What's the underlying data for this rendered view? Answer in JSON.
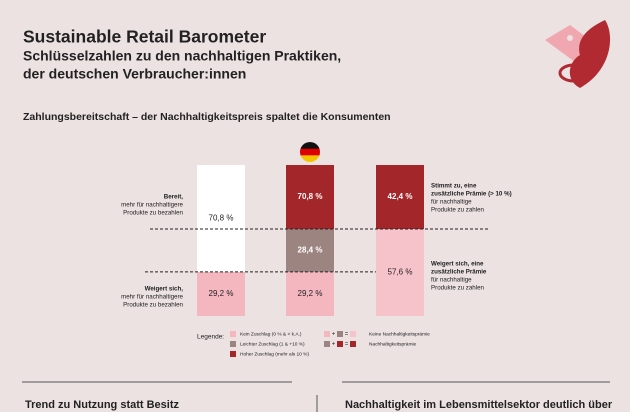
{
  "header": {
    "title": "Sustainable Retail Barometer",
    "subtitle_lines": [
      "Schlüsselzahlen zu den nachhaltigen Praktiken,",
      "der deutschen Verbraucher:innen"
    ]
  },
  "chart_data": {
    "type": "stacked-bar",
    "title": "Zahlungsbereitschaft – der Nachhaltigkeitspreis spaltet die Konsumenten",
    "ylim": [
      0,
      100
    ],
    "columns": [
      {
        "segments": [
          {
            "value": 29.2,
            "label": "29,2 %",
            "color": "#f4b6bf"
          },
          {
            "value": 70.8,
            "label": "70,8 %",
            "color": "#ffffff"
          }
        ]
      },
      {
        "segments": [
          {
            "value": 29.2,
            "label": "29,2 %",
            "color": "#f4b6bf"
          },
          {
            "value": 28.4,
            "label": "28,4 %",
            "color": "#9c8480"
          },
          {
            "value": 42.4,
            "color": "#a3262b"
          }
        ],
        "note_label": "70,8 %",
        "flag": true
      },
      {
        "segments": [
          {
            "value": 57.6,
            "label": "57,6 %",
            "color": "#f7c3ca"
          },
          {
            "value": 42.4,
            "label": "42,4 %",
            "color": "#a3262b"
          }
        ]
      }
    ],
    "left_notes": [
      {
        "bold": [
          "Bereit,"
        ],
        "lines": [
          "mehr für nachhaltigere",
          "Produkte zu bezahlen"
        ]
      },
      {
        "bold": [
          "Weigert sich,"
        ],
        "lines": [
          "mehr für nachhaltigere",
          "Produkte zu bezahlen"
        ]
      }
    ],
    "right_notes": [
      {
        "bold": [
          "Stimmt zu, eine",
          "zusätzliche Prämie (> 10 %)"
        ],
        "lines": [
          "für nachhaltige",
          "Produkte zu zahlen"
        ]
      },
      {
        "bold": [
          "Weigert sich, eine",
          "zusätzliche Prämie"
        ],
        "lines": [
          "für nachhaltige",
          "Produkte zu zahlen"
        ]
      }
    ],
    "legend": {
      "title": "Legende:",
      "items": [
        {
          "label": "Kein Zuschlag (0 % & < k.A.)",
          "color": "#f4b6bf"
        },
        {
          "label": "Leichter Zuschlag (1 & +10 %)",
          "color": "#9c8480"
        },
        {
          "label": "Hoher Zuschlag (mehr als 10 %)",
          "color": "#a3262b"
        }
      ]
    },
    "legend2": {
      "items": [
        {
          "label": "Keine Nachhaltigkeitsprämie",
          "operators": [
            "+",
            "="
          ],
          "colors": [
            "#f4b6bf",
            "#9c8480",
            "#f7c3ca"
          ]
        },
        {
          "label": "Nachhaltigkeitsprämie",
          "operators": [
            "+",
            "="
          ],
          "colors": [
            "#9c8480",
            "#a3262b",
            "#a3262b"
          ]
        }
      ]
    }
  },
  "footer": {
    "left": "Trend zu Nutzung statt Besitz",
    "right": "Nachhaltigkeit im Lebensmittelsektor deutlich über"
  }
}
